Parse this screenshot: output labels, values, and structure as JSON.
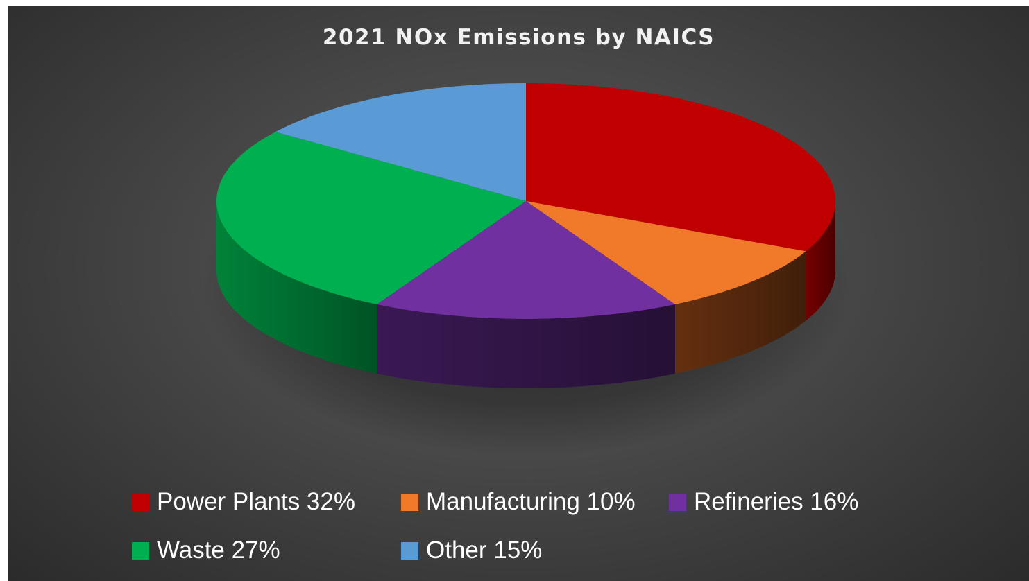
{
  "chart_data": {
    "type": "pie",
    "title": "2021 NOx Emissions by NAICS",
    "style": "3d",
    "legend_position": "bottom",
    "slices": [
      {
        "label": "Power Plants 32%",
        "value": 32,
        "color": "#c00000",
        "side_color": "#7a0000"
      },
      {
        "label": "Manufacturing 10%",
        "value": 10,
        "color": "#f07a2a",
        "side_color": "#6a3210"
      },
      {
        "label": "Refineries 16%",
        "value": 16,
        "color": "#7030a0",
        "side_color": "#3d1a58"
      },
      {
        "label": "Waste 27%",
        "value": 27,
        "color": "#00b050",
        "side_color": "#00893c"
      },
      {
        "label": "Other 15%",
        "value": 15,
        "color": "#5b9bd5",
        "side_color": "#3f75a8"
      }
    ]
  }
}
